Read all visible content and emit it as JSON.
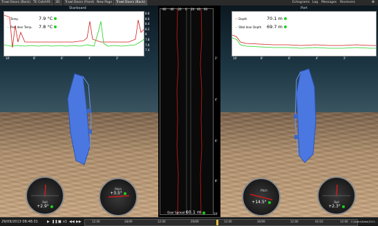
{
  "tabs": [
    {
      "label": "Trawl Doors (Back)"
    },
    {
      "label": "TE Catchfit"
    },
    {
      "label": "3D"
    },
    {
      "label": "Trawl Doors (Front)"
    },
    {
      "label": "New Page"
    },
    {
      "label": "Trawl Doors (Back)"
    }
  ],
  "right_menu": [
    "Echograms",
    "Log",
    "Messages",
    "Receivers"
  ],
  "starboard": {
    "title": "Starboard",
    "legend": [
      {
        "name": "Temp.",
        "value": "7.9 °C",
        "color": "#d11a1a"
      },
      {
        "name": "Port door Temp.",
        "value": "7.8 °C",
        "color": "#1dcf1d"
      }
    ],
    "y_ticks": [
      "8.8",
      "8.6",
      "8.4",
      "8.2",
      "8",
      "7.8",
      "7.6",
      "7.4"
    ],
    "x_ticks": [
      "10'",
      "8'",
      "6'",
      "4'",
      "2'"
    ],
    "roll": {
      "label": "Roll",
      "value": "+2.9°"
    },
    "pitch": {
      "label": "Pitch",
      "value": "+3.5°"
    }
  },
  "center": {
    "x_ticks": [
      "-60",
      "-40",
      "-20",
      "0",
      "20",
      "40",
      "60"
    ],
    "y_ticks": [
      "2'",
      "4'",
      "6'",
      "8'",
      "10'"
    ],
    "legend": {
      "name": "Door Spread",
      "value": "60.1 m",
      "color": "#d11a1a"
    }
  },
  "port": {
    "title": "Port",
    "legend": [
      {
        "name": "Depth",
        "value": "70.1 m",
        "color": "#d11a1a"
      },
      {
        "name": "Stbd door Depth",
        "value": "69.7 m",
        "color": "#1dcf1d"
      }
    ],
    "x_ticks": [
      "10'",
      "8'",
      "6'",
      "4'",
      "2'"
    ],
    "pitch": {
      "label": "Pitch",
      "value": "+14.5°"
    },
    "roll": {
      "label": "Roll",
      "value": "+2.3°"
    }
  },
  "status": {
    "datetime": "29/09/2013 08:48:31",
    "speed": "x1",
    "timeline": [
      "12:00",
      "28/09",
      "12:00",
      "29/09",
      "12:00",
      "30/09",
      "12:00",
      "01/10",
      "12:00"
    ],
    "path": "C:\\Users\\Data\\2013..."
  },
  "colors": {
    "red_series": "#d11a1a",
    "green_series": "#1dcf1d",
    "door": "#4a78e0"
  }
}
